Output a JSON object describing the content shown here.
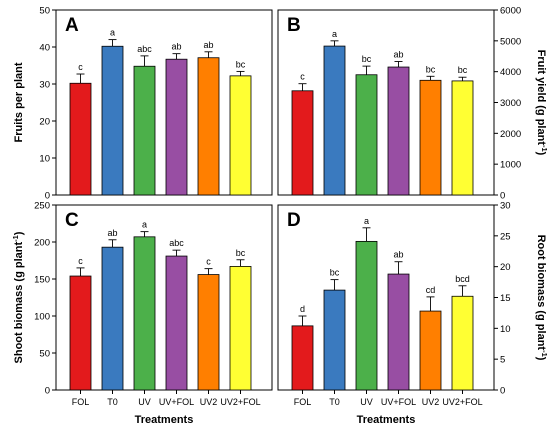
{
  "colors": [
    "#e31a1c",
    "#3a7abf",
    "#4cb04a",
    "#984ea3",
    "#ff7f00",
    "#ffff33"
  ],
  "chart_data": [
    {
      "type": "bar",
      "panel_label": "A",
      "ylabel": "Fruits per plant",
      "ylabel_unit": "",
      "ylabel_sup": "",
      "ylabel_unit_close": "",
      "y_axis_side": "left",
      "ylim": [
        0,
        50
      ],
      "yticks": [
        0,
        10,
        20,
        30,
        40,
        50
      ],
      "categories": [
        "FOL",
        "T0",
        "UV",
        "UV+FOL",
        "UV2",
        "UV2+FOL"
      ],
      "show_category_labels": false,
      "xlabel": "",
      "values": [
        30.2,
        40.2,
        34.8,
        36.7,
        37.1,
        32.2
      ],
      "errors": [
        2.5,
        1.8,
        2.8,
        1.5,
        1.6,
        1.2
      ],
      "significance": [
        "c",
        "a",
        "abc",
        "ab",
        "ab",
        "bc"
      ]
    },
    {
      "type": "bar",
      "panel_label": "B",
      "ylabel": "Fruit yield",
      "ylabel_unit": " (g plant",
      "ylabel_sup": "-1",
      "ylabel_unit_close": ")",
      "y_axis_side": "right",
      "ylim": [
        0,
        6000
      ],
      "yticks": [
        0,
        1000,
        2000,
        3000,
        4000,
        5000,
        6000
      ],
      "categories": [
        "FOL",
        "T0",
        "UV",
        "UV+FOL",
        "UV2",
        "UV2+FOL"
      ],
      "show_category_labels": false,
      "xlabel": "",
      "values": [
        3380,
        4830,
        3900,
        4150,
        3720,
        3700
      ],
      "errors": [
        230,
        170,
        280,
        180,
        130,
        120
      ],
      "significance": [
        "c",
        "a",
        "bc",
        "ab",
        "bc",
        "bc"
      ]
    },
    {
      "type": "bar",
      "panel_label": "C",
      "ylabel": "Shoot biomass",
      "ylabel_unit": " (g plant",
      "ylabel_sup": "-1",
      "ylabel_unit_close": ")",
      "y_axis_side": "left",
      "ylim": [
        0,
        250
      ],
      "yticks": [
        0,
        50,
        100,
        150,
        200,
        250
      ],
      "categories": [
        "FOL",
        "T0",
        "UV",
        "UV+FOL",
        "UV2",
        "UV2+FOL"
      ],
      "show_category_labels": true,
      "xlabel": "Treatments",
      "values": [
        154,
        193,
        207,
        181,
        156,
        167
      ],
      "errors": [
        11,
        10,
        7,
        8,
        8,
        9
      ],
      "significance": [
        "c",
        "ab",
        "a",
        "abc",
        "c",
        "bc"
      ]
    },
    {
      "type": "bar",
      "panel_label": "D",
      "ylabel": "Root biomass",
      "ylabel_unit": " (g plant",
      "ylabel_sup": "-1",
      "ylabel_unit_close": ")",
      "y_axis_side": "right",
      "ylim": [
        0,
        30
      ],
      "yticks": [
        0,
        5,
        10,
        15,
        20,
        25,
        30
      ],
      "categories": [
        "FOL",
        "T0",
        "UV",
        "UV+FOL",
        "UV2",
        "UV2+FOL"
      ],
      "show_category_labels": true,
      "xlabel": "Treatments",
      "values": [
        10.4,
        16.2,
        24.1,
        18.8,
        12.8,
        15.2
      ],
      "errors": [
        1.6,
        1.7,
        2.2,
        2.0,
        2.3,
        1.7
      ],
      "significance": [
        "d",
        "bc",
        "a",
        "ab",
        "cd",
        "bcd"
      ]
    }
  ]
}
